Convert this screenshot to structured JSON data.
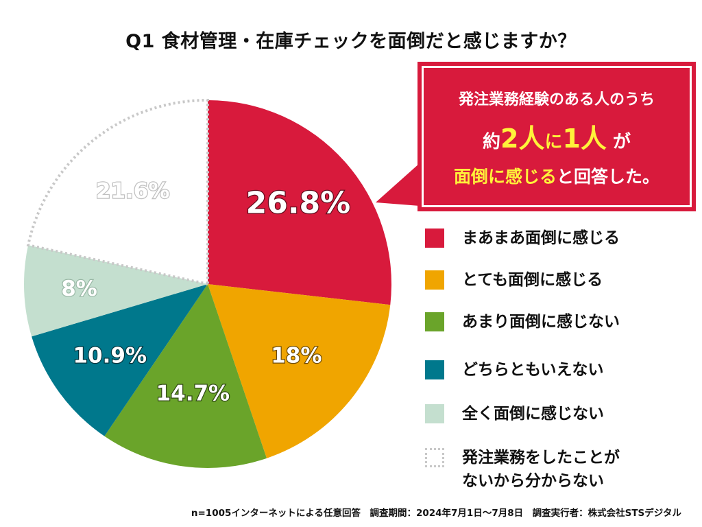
{
  "title": "Q1 食材管理・在庫チェックを面倒だと感じますか？",
  "callout": {
    "line1": "発注業務経験のある人のうち",
    "line2_pre": "約",
    "line2_big1": "2人",
    "line2_mid": "に",
    "line2_big2": "1人",
    "line2_post": "が",
    "line3_hl": "面倒に感じる",
    "line3_rest": "と回答した。",
    "bg_color": "#d81a3c",
    "highlight_color": "#fff23a"
  },
  "chart_data": {
    "type": "pie",
    "title": "Q1 食材管理・在庫チェックを面倒だと感じますか？",
    "start": "top, clockwise",
    "slices": [
      {
        "label": "まあまあ面倒に感じる",
        "value": 26.8,
        "display": "26.8%",
        "color": "#d81a3c"
      },
      {
        "label": "とても面倒に感じる",
        "value": 18,
        "display": "18%",
        "color": "#f0a500"
      },
      {
        "label": "あまり面倒に感じない",
        "value": 14.7,
        "display": "14.7%",
        "color": "#6aa42a"
      },
      {
        "label": "どちらともいえない",
        "value": 10.9,
        "display": "10.9%",
        "color": "#00788c"
      },
      {
        "label": "全く面倒に感じない",
        "value": 8,
        "display": "8%",
        "color": "#c4dfcf"
      },
      {
        "label": "発注業務をしたことがないから分からない",
        "value": 21.6,
        "display": "21.6%",
        "color": "#ffffff",
        "dotted": true
      }
    ]
  },
  "legend": [
    {
      "lines": [
        "まあまあ面倒に感じる"
      ],
      "color": "#d81a3c"
    },
    {
      "lines": [
        "とても面倒に感じる"
      ],
      "color": "#f0a500"
    },
    {
      "lines": [
        "あまり面倒に感じない"
      ],
      "color": "#6aa42a"
    },
    {
      "lines": [
        "どちらともいえない"
      ],
      "color": "#00788c"
    },
    {
      "lines": [
        "全く面倒に感じない"
      ],
      "color": "#c4dfcf"
    },
    {
      "lines": [
        "発注業務をしたことが",
        "ないから分からない"
      ],
      "color": "#ffffff",
      "dotted": true
    }
  ],
  "footer": "n=1005インターネットによる任意回答　調査期間：2024年7月1日～7月8日　調査実行者：株式会社STSデジタル"
}
